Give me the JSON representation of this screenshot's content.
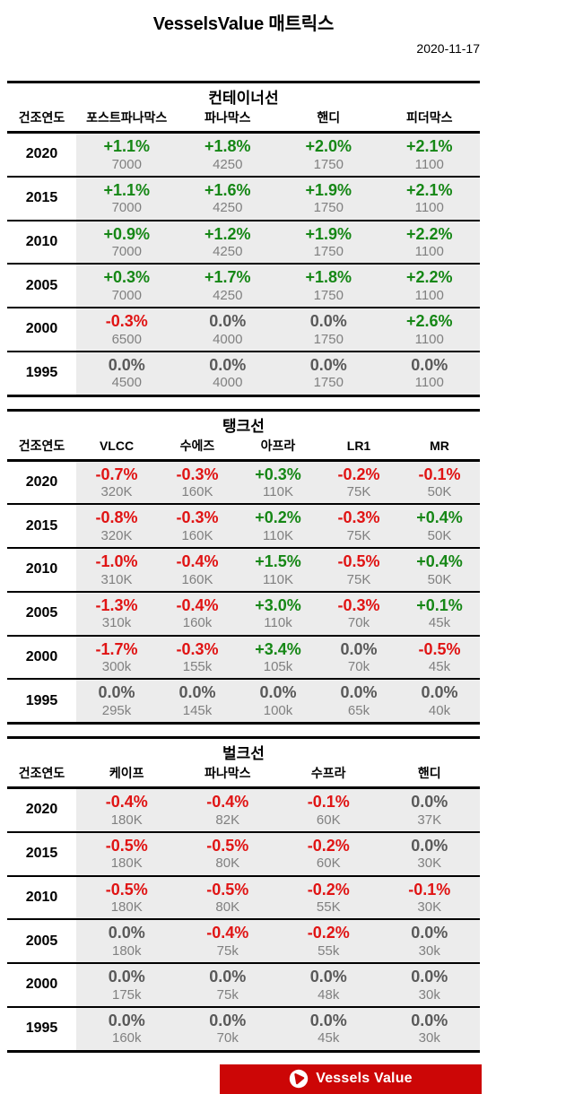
{
  "header": {
    "title": "VesselsValue 매트릭스",
    "date": "2020-11-17"
  },
  "colors": {
    "positive": "#168716",
    "negative": "#e01414",
    "zero": "#595959",
    "value_gray": "#808080",
    "row_bg": "#ececec",
    "banner_red": "#cc0606",
    "line_black": "#000000"
  },
  "tables": [
    {
      "key": "container",
      "title": "컨테이너선",
      "year_header": "건조연도",
      "columns": [
        "포스트파나막스",
        "파나막스",
        "핸디",
        "피더막스"
      ],
      "rows": [
        {
          "year": "2020",
          "cells": [
            [
              "+1.1%",
              "7000"
            ],
            [
              "+1.8%",
              "4250"
            ],
            [
              "+2.0%",
              "1750"
            ],
            [
              "+2.1%",
              "1100"
            ]
          ]
        },
        {
          "year": "2015",
          "cells": [
            [
              "+1.1%",
              "7000"
            ],
            [
              "+1.6%",
              "4250"
            ],
            [
              "+1.9%",
              "1750"
            ],
            [
              "+2.1%",
              "1100"
            ]
          ]
        },
        {
          "year": "2010",
          "cells": [
            [
              "+0.9%",
              "7000"
            ],
            [
              "+1.2%",
              "4250"
            ],
            [
              "+1.9%",
              "1750"
            ],
            [
              "+2.2%",
              "1100"
            ]
          ]
        },
        {
          "year": "2005",
          "cells": [
            [
              "+0.3%",
              "7000"
            ],
            [
              "+1.7%",
              "4250"
            ],
            [
              "+1.8%",
              "1750"
            ],
            [
              "+2.2%",
              "1100"
            ]
          ]
        },
        {
          "year": "2000",
          "cells": [
            [
              "-0.3%",
              "6500"
            ],
            [
              "0.0%",
              "4000"
            ],
            [
              "0.0%",
              "1750"
            ],
            [
              "+2.6%",
              "1100"
            ]
          ]
        },
        {
          "year": "1995",
          "cells": [
            [
              "0.0%",
              "4500"
            ],
            [
              "0.0%",
              "4000"
            ],
            [
              "0.0%",
              "1750"
            ],
            [
              "0.0%",
              "1100"
            ]
          ]
        }
      ]
    },
    {
      "key": "tanker",
      "title": "탱크선",
      "year_header": "건조연도",
      "columns": [
        "VLCC",
        "수에즈",
        "아프라",
        "LR1",
        "MR"
      ],
      "rows": [
        {
          "year": "2020",
          "cells": [
            [
              "-0.7%",
              "320K"
            ],
            [
              "-0.3%",
              "160K"
            ],
            [
              "+0.3%",
              "110K"
            ],
            [
              "-0.2%",
              "75K"
            ],
            [
              "-0.1%",
              "50K"
            ]
          ]
        },
        {
          "year": "2015",
          "cells": [
            [
              "-0.8%",
              "320K"
            ],
            [
              "-0.3%",
              "160K"
            ],
            [
              "+0.2%",
              "110K"
            ],
            [
              "-0.3%",
              "75K"
            ],
            [
              "+0.4%",
              "50K"
            ]
          ]
        },
        {
          "year": "2010",
          "cells": [
            [
              "-1.0%",
              "310K"
            ],
            [
              "-0.4%",
              "160K"
            ],
            [
              "+1.5%",
              "110K"
            ],
            [
              "-0.5%",
              "75K"
            ],
            [
              "+0.4%",
              "50K"
            ]
          ]
        },
        {
          "year": "2005",
          "cells": [
            [
              "-1.3%",
              "310k"
            ],
            [
              "-0.4%",
              "160k"
            ],
            [
              "+3.0%",
              "110k"
            ],
            [
              "-0.3%",
              "70k"
            ],
            [
              "+0.1%",
              "45k"
            ]
          ]
        },
        {
          "year": "2000",
          "cells": [
            [
              "-1.7%",
              "300k"
            ],
            [
              "-0.3%",
              "155k"
            ],
            [
              "+3.4%",
              "105k"
            ],
            [
              "0.0%",
              "70k"
            ],
            [
              "-0.5%",
              "45k"
            ]
          ]
        },
        {
          "year": "1995",
          "cells": [
            [
              "0.0%",
              "295k"
            ],
            [
              "0.0%",
              "145k"
            ],
            [
              "0.0%",
              "100k"
            ],
            [
              "0.0%",
              "65k"
            ],
            [
              "0.0%",
              "40k"
            ]
          ]
        }
      ]
    },
    {
      "key": "bulker",
      "title": "벌크선",
      "year_header": "건조연도",
      "columns": [
        "케이프",
        "파나막스",
        "수프라",
        "핸디"
      ],
      "rows": [
        {
          "year": "2020",
          "cells": [
            [
              "-0.4%",
              "180K"
            ],
            [
              "-0.4%",
              "82K"
            ],
            [
              "-0.1%",
              "60K"
            ],
            [
              "0.0%",
              "37K"
            ]
          ]
        },
        {
          "year": "2015",
          "cells": [
            [
              "-0.5%",
              "180K"
            ],
            [
              "-0.5%",
              "80K"
            ],
            [
              "-0.2%",
              "60K"
            ],
            [
              "0.0%",
              "30K"
            ]
          ]
        },
        {
          "year": "2010",
          "cells": [
            [
              "-0.5%",
              "180K"
            ],
            [
              "-0.5%",
              "80K"
            ],
            [
              "-0.2%",
              "55K"
            ],
            [
              "-0.1%",
              "30K"
            ]
          ]
        },
        {
          "year": "2005",
          "cells": [
            [
              "0.0%",
              "180k"
            ],
            [
              "-0.4%",
              "75k"
            ],
            [
              "-0.2%",
              "55k"
            ],
            [
              "0.0%",
              "30k"
            ]
          ]
        },
        {
          "year": "2000",
          "cells": [
            [
              "0.0%",
              "175k"
            ],
            [
              "0.0%",
              "75k"
            ],
            [
              "0.0%",
              "48k"
            ],
            [
              "0.0%",
              "30k"
            ]
          ]
        },
        {
          "year": "1995",
          "cells": [
            [
              "0.0%",
              "160k"
            ],
            [
              "0.0%",
              "70k"
            ],
            [
              "0.0%",
              "45k"
            ],
            [
              "0.0%",
              "30k"
            ]
          ]
        }
      ]
    }
  ],
  "footer": {
    "logo_label": "Vessels Value"
  }
}
